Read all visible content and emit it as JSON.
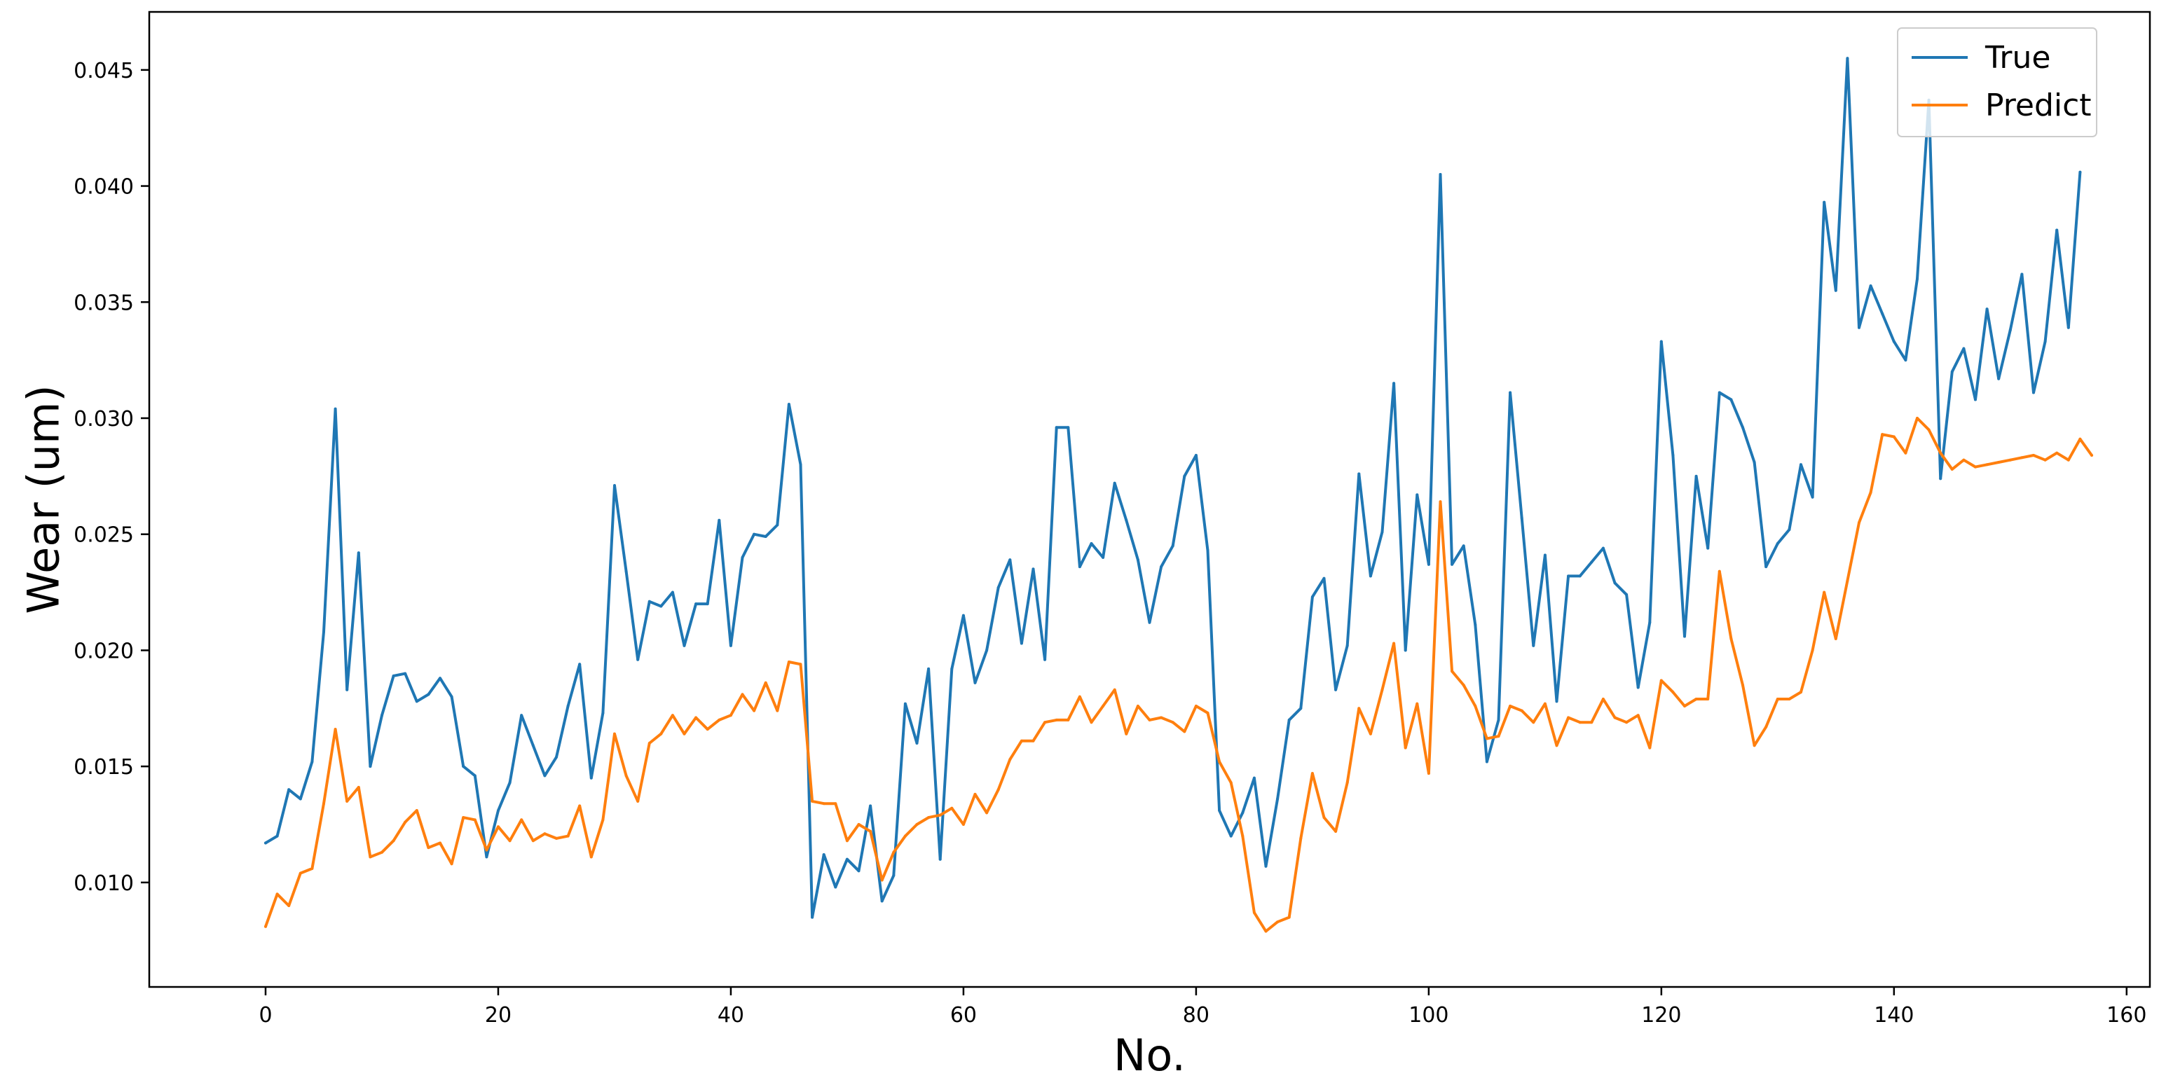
{
  "chart_data": {
    "type": "line",
    "title": "",
    "xlabel": "No.",
    "ylabel": "Wear (um)",
    "xlim": [
      -10,
      162
    ],
    "ylim": [
      0.0055,
      0.0475
    ],
    "xticks": [
      0,
      20,
      40,
      60,
      80,
      100,
      120,
      140,
      160
    ],
    "xtick_labels": [
      "0",
      "20",
      "40",
      "60",
      "80",
      "100",
      "120",
      "140",
      "160"
    ],
    "yticks": [
      0.01,
      0.015,
      0.02,
      0.025,
      0.03,
      0.035,
      0.04,
      0.045
    ],
    "ytick_labels": [
      "0.010",
      "0.015",
      "0.020",
      "0.025",
      "0.030",
      "0.035",
      "0.040",
      "0.045"
    ],
    "grid": false,
    "legend_position": "top-right",
    "series": [
      {
        "name": "True",
        "color": "#1f77b4",
        "values": [
          0.0117,
          0.012,
          0.014,
          0.0136,
          0.0152,
          0.0208,
          0.0304,
          0.0183,
          0.0242,
          0.015,
          0.0172,
          0.0189,
          0.019,
          0.0178,
          0.0181,
          0.0188,
          0.018,
          0.015,
          0.0146,
          0.0111,
          0.0131,
          0.0143,
          0.0172,
          0.0159,
          0.0146,
          0.0154,
          0.0176,
          0.0194,
          0.0145,
          0.0173,
          0.0271,
          0.0234,
          0.0196,
          0.0221,
          0.0219,
          0.0225,
          0.0202,
          0.022,
          0.022,
          0.0256,
          0.0202,
          0.024,
          0.025,
          0.0249,
          0.0254,
          0.0306,
          0.028,
          0.0085,
          0.0112,
          0.0098,
          0.011,
          0.0105,
          0.0133,
          0.0092,
          0.0103,
          0.0177,
          0.016,
          0.0192,
          0.011,
          0.0192,
          0.0215,
          0.0186,
          0.02,
          0.0227,
          0.0239,
          0.0203,
          0.0235,
          0.0196,
          0.0296,
          0.0296,
          0.0236,
          0.0246,
          0.024,
          0.0272,
          0.0256,
          0.0239,
          0.0212,
          0.0236,
          0.0245,
          0.0275,
          0.0284,
          0.0243,
          0.0131,
          0.012,
          0.013,
          0.0145,
          0.0107,
          0.0136,
          0.017,
          0.0175,
          0.0223,
          0.0231,
          0.0183,
          0.0202,
          0.0276,
          0.0232,
          0.0251,
          0.0315,
          0.02,
          0.0267,
          0.0237,
          0.0405,
          0.0237,
          0.0245,
          0.0211,
          0.0152,
          0.017,
          0.0311,
          0.0257,
          0.0202,
          0.0241,
          0.0178,
          0.0232,
          0.0232,
          0.0238,
          0.0244,
          0.0229,
          0.0224,
          0.0184,
          0.0212,
          0.0333,
          0.0284,
          0.0206,
          0.0275,
          0.0244,
          0.0311,
          0.0308,
          0.0296,
          0.0281,
          0.0236,
          0.0246,
          0.0252,
          0.028,
          0.0266,
          0.0393,
          0.0355,
          0.0455,
          0.0339,
          0.0357,
          0.0345,
          0.0333,
          0.0325,
          0.036,
          0.0437,
          0.0274,
          0.032,
          0.033,
          0.0308,
          0.0347,
          0.0317,
          0.0338,
          0.0362,
          0.0311,
          0.0333,
          0.0381,
          0.0339,
          0.0406
        ]
      },
      {
        "name": "Predict",
        "color": "#ff7f0e",
        "values": [
          0.0081,
          0.0095,
          0.009,
          0.0104,
          0.0106,
          0.0134,
          0.0166,
          0.0135,
          0.0141,
          0.0111,
          0.0113,
          0.0118,
          0.0126,
          0.0131,
          0.0115,
          0.0117,
          0.0108,
          0.0128,
          0.0127,
          0.0114,
          0.0124,
          0.0118,
          0.0127,
          0.0118,
          0.0121,
          0.0119,
          0.012,
          0.0133,
          0.0111,
          0.0127,
          0.0164,
          0.0146,
          0.0135,
          0.016,
          0.0164,
          0.0172,
          0.0164,
          0.0171,
          0.0166,
          0.017,
          0.0172,
          0.0181,
          0.0174,
          0.0186,
          0.0174,
          0.0195,
          0.0194,
          0.0135,
          0.0134,
          0.0134,
          0.0118,
          0.0125,
          0.0122,
          0.0101,
          0.0113,
          0.012,
          0.0125,
          0.0128,
          0.0129,
          0.0132,
          0.0125,
          0.0138,
          0.013,
          0.014,
          0.0153,
          0.0161,
          0.0161,
          0.0169,
          0.017,
          0.017,
          0.018,
          0.0169,
          0.0176,
          0.0183,
          0.0164,
          0.0176,
          0.017,
          0.0171,
          0.0169,
          0.0165,
          0.0176,
          0.0173,
          0.0152,
          0.0143,
          0.012,
          0.0087,
          0.0079,
          0.0083,
          0.0085,
          0.0119,
          0.0147,
          0.0128,
          0.0122,
          0.0143,
          0.0175,
          0.0164,
          0.0183,
          0.0203,
          0.0158,
          0.0177,
          0.0147,
          0.0264,
          0.0191,
          0.0185,
          0.0176,
          0.0162,
          0.0163,
          0.0176,
          0.0174,
          0.0169,
          0.0177,
          0.0159,
          0.0171,
          0.0169,
          0.0169,
          0.0179,
          0.0171,
          0.0169,
          0.0172,
          0.0158,
          0.0187,
          0.0182,
          0.0176,
          0.0179,
          0.0179,
          0.0234,
          0.0205,
          0.0185,
          0.0159,
          0.0167,
          0.0179,
          0.0179,
          0.0182,
          0.02,
          0.0225,
          0.0205,
          0.023,
          0.0255,
          0.0268,
          0.0293,
          0.0292,
          0.0285,
          0.03,
          0.0295,
          0.0285,
          0.0278,
          0.0282,
          0.0279,
          0.028,
          0.0281,
          0.0282,
          0.0283,
          0.0284,
          0.0282,
          0.0285,
          0.0282,
          0.0291,
          0.0284
        ]
      }
    ]
  }
}
